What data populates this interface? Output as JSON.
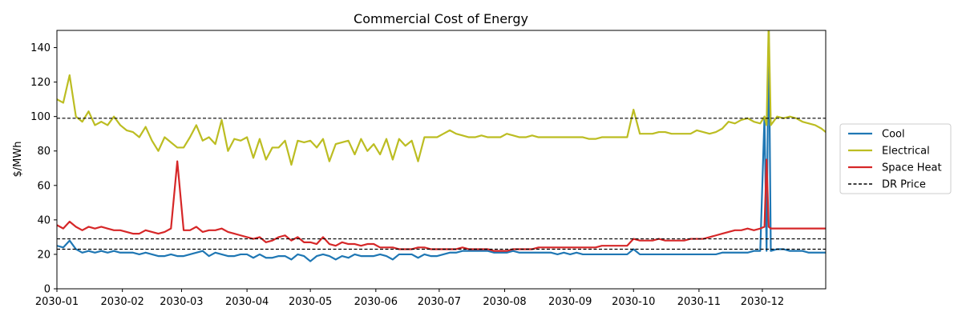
{
  "chart_data": {
    "type": "line",
    "title": "Commercial Cost of Energy",
    "xlabel": "",
    "ylabel": "$/MWh",
    "xlim": [
      "2030-01-01",
      "2030-12-31"
    ],
    "ylim": [
      0,
      150
    ],
    "x_ticks": [
      "2030-01",
      "2030-02",
      "2030-03",
      "2030-04",
      "2030-05",
      "2030-06",
      "2030-07",
      "2030-08",
      "2030-09",
      "2030-10",
      "2030-11",
      "2030-12"
    ],
    "y_ticks": [
      0,
      20,
      40,
      60,
      80,
      100,
      120,
      140
    ],
    "grid": false,
    "legend_position": "outside-right",
    "x": [
      "2030-01-01",
      "2030-01-04",
      "2030-01-07",
      "2030-01-10",
      "2030-01-13",
      "2030-01-16",
      "2030-01-19",
      "2030-01-22",
      "2030-01-25",
      "2030-01-28",
      "2030-01-31",
      "2030-02-03",
      "2030-02-06",
      "2030-02-09",
      "2030-02-12",
      "2030-02-15",
      "2030-02-18",
      "2030-02-21",
      "2030-02-24",
      "2030-02-27",
      "2030-03-02",
      "2030-03-05",
      "2030-03-08",
      "2030-03-11",
      "2030-03-14",
      "2030-03-17",
      "2030-03-20",
      "2030-03-23",
      "2030-03-26",
      "2030-03-29",
      "2030-04-01",
      "2030-04-04",
      "2030-04-07",
      "2030-04-10",
      "2030-04-13",
      "2030-04-16",
      "2030-04-19",
      "2030-04-22",
      "2030-04-25",
      "2030-04-28",
      "2030-05-01",
      "2030-05-04",
      "2030-05-07",
      "2030-05-10",
      "2030-05-13",
      "2030-05-16",
      "2030-05-19",
      "2030-05-22",
      "2030-05-25",
      "2030-05-28",
      "2030-05-31",
      "2030-06-03",
      "2030-06-06",
      "2030-06-09",
      "2030-06-12",
      "2030-06-15",
      "2030-06-18",
      "2030-06-21",
      "2030-06-24",
      "2030-06-27",
      "2030-06-30",
      "2030-07-03",
      "2030-07-06",
      "2030-07-09",
      "2030-07-12",
      "2030-07-15",
      "2030-07-18",
      "2030-07-21",
      "2030-07-24",
      "2030-07-27",
      "2030-07-30",
      "2030-08-02",
      "2030-08-05",
      "2030-08-08",
      "2030-08-11",
      "2030-08-14",
      "2030-08-17",
      "2030-08-20",
      "2030-08-23",
      "2030-08-26",
      "2030-08-29",
      "2030-09-01",
      "2030-09-04",
      "2030-09-07",
      "2030-09-10",
      "2030-09-13",
      "2030-09-16",
      "2030-09-19",
      "2030-09-22",
      "2030-09-25",
      "2030-09-28",
      "2030-10-01",
      "2030-10-04",
      "2030-10-07",
      "2030-10-10",
      "2030-10-13",
      "2030-10-16",
      "2030-10-19",
      "2030-10-22",
      "2030-10-25",
      "2030-10-28",
      "2030-10-31",
      "2030-11-03",
      "2030-11-06",
      "2030-11-09",
      "2030-11-12",
      "2030-11-15",
      "2030-11-18",
      "2030-11-21",
      "2030-11-24",
      "2030-11-27",
      "2030-11-30",
      "2030-12-02",
      "2030-12-03",
      "2030-12-04",
      "2030-12-05",
      "2030-12-08",
      "2030-12-11",
      "2030-12-14",
      "2030-12-17",
      "2030-12-20",
      "2030-12-23",
      "2030-12-26",
      "2030-12-29",
      "2030-12-31"
    ],
    "series": [
      {
        "name": "Cool",
        "color": "#1f77b4",
        "style": "solid",
        "values": [
          25,
          24,
          28,
          23,
          21,
          22,
          21,
          22,
          21,
          22,
          21,
          21,
          21,
          20,
          21,
          20,
          19,
          19,
          20,
          19,
          19,
          20,
          21,
          22,
          19,
          21,
          20,
          19,
          19,
          20,
          20,
          18,
          20,
          18,
          18,
          19,
          19,
          17,
          20,
          19,
          16,
          19,
          20,
          19,
          17,
          19,
          18,
          20,
          19,
          19,
          19,
          20,
          19,
          17,
          20,
          20,
          20,
          18,
          20,
          19,
          19,
          20,
          21,
          21,
          22,
          22,
          22,
          22,
          22,
          21,
          21,
          21,
          22,
          21,
          21,
          21,
          21,
          21,
          21,
          20,
          21,
          20,
          21,
          20,
          20,
          20,
          20,
          20,
          20,
          20,
          20,
          23,
          20,
          20,
          20,
          20,
          20,
          20,
          20,
          20,
          20,
          20,
          20,
          20,
          20,
          21,
          21,
          21,
          21,
          21,
          22,
          22,
          100,
          22,
          155,
          22,
          23,
          23,
          22,
          22,
          22,
          21,
          21,
          21,
          21
        ]
      },
      {
        "name": "Electrical",
        "color": "#bcbd22",
        "style": "solid",
        "values": [
          110,
          108,
          124,
          100,
          97,
          103,
          95,
          97,
          95,
          100,
          95,
          92,
          91,
          88,
          94,
          86,
          80,
          88,
          85,
          82,
          82,
          88,
          95,
          86,
          88,
          84,
          98,
          80,
          87,
          86,
          88,
          76,
          87,
          75,
          82,
          82,
          86,
          72,
          86,
          85,
          86,
          82,
          87,
          74,
          84,
          85,
          86,
          78,
          87,
          80,
          84,
          78,
          87,
          75,
          87,
          83,
          86,
          74,
          88,
          88,
          88,
          90,
          92,
          90,
          89,
          88,
          88,
          89,
          88,
          88,
          88,
          90,
          89,
          88,
          88,
          89,
          88,
          88,
          88,
          88,
          88,
          88,
          88,
          88,
          87,
          87,
          88,
          88,
          88,
          88,
          88,
          104,
          90,
          90,
          90,
          91,
          91,
          90,
          90,
          90,
          90,
          92,
          91,
          90,
          91,
          93,
          97,
          96,
          98,
          99,
          97,
          96,
          100,
          95,
          155,
          95,
          100,
          99,
          100,
          99,
          97,
          96,
          95,
          93,
          91
        ]
      },
      {
        "name": "Space Heat",
        "color": "#d62728",
        "style": "solid",
        "values": [
          37,
          35,
          39,
          36,
          34,
          36,
          35,
          36,
          35,
          34,
          34,
          33,
          32,
          32,
          34,
          33,
          32,
          33,
          35,
          74,
          34,
          34,
          36,
          33,
          34,
          34,
          35,
          33,
          32,
          31,
          30,
          29,
          30,
          27,
          28,
          30,
          31,
          28,
          30,
          27,
          27,
          26,
          30,
          26,
          25,
          27,
          26,
          26,
          25,
          26,
          26,
          24,
          24,
          24,
          23,
          23,
          23,
          24,
          24,
          23,
          23,
          23,
          23,
          23,
          24,
          23,
          23,
          23,
          23,
          22,
          22,
          22,
          23,
          23,
          23,
          23,
          24,
          24,
          24,
          24,
          24,
          24,
          24,
          24,
          24,
          24,
          25,
          25,
          25,
          25,
          25,
          29,
          28,
          28,
          28,
          29,
          28,
          28,
          28,
          28,
          29,
          29,
          29,
          30,
          31,
          32,
          33,
          34,
          34,
          35,
          34,
          35,
          36,
          75,
          36,
          35,
          35,
          35,
          35,
          35,
          35,
          35,
          35,
          35,
          35
        ]
      },
      {
        "name": "DR Price",
        "color": "#000000",
        "style": "dashed",
        "constant_lines": [
          99,
          29,
          23
        ]
      }
    ]
  }
}
